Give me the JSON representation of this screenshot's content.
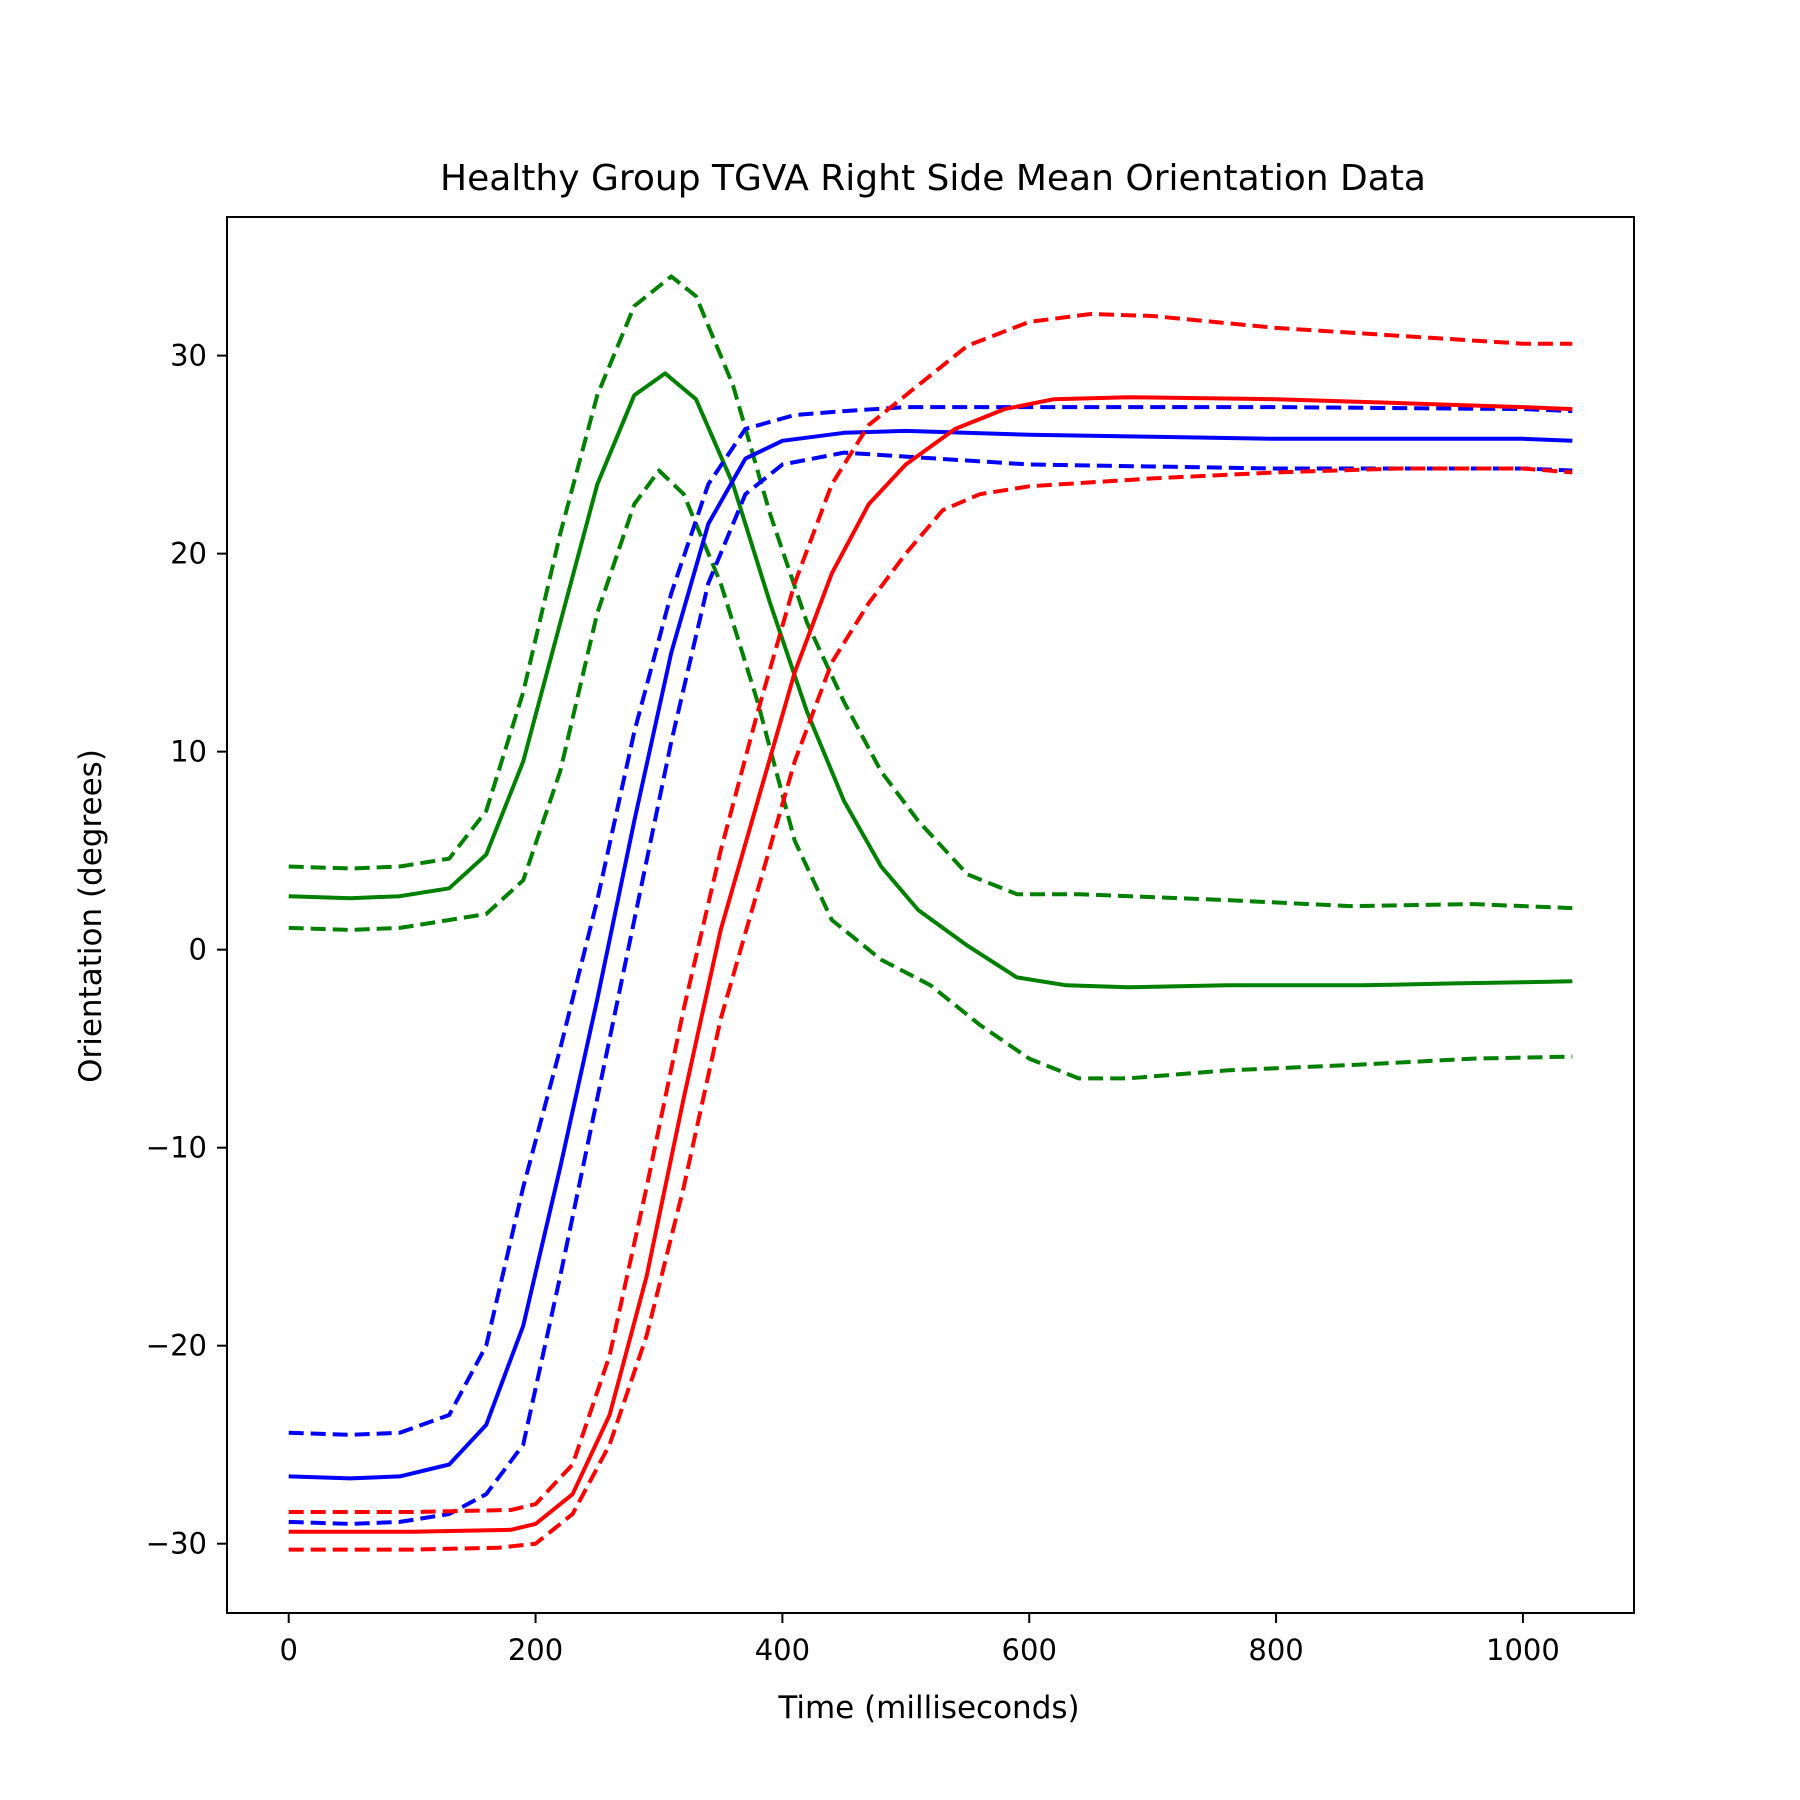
{
  "chart_data": {
    "type": "line",
    "title": "Healthy Group TGVA Right Side Mean Orientation Data",
    "xlabel": "Time (milliseconds)",
    "ylabel": "Orientation (degrees)",
    "xlim": [
      -50,
      1090
    ],
    "ylim": [
      -33.5,
      37
    ],
    "x_ticks": [
      0,
      200,
      400,
      600,
      800,
      1000
    ],
    "y_ticks": [
      -30,
      -20,
      -10,
      0,
      10,
      20,
      30
    ],
    "grid": false,
    "legend": "none",
    "series": [
      {
        "color": "#008000",
        "style": "solid",
        "points": [
          [
            0,
            2.7
          ],
          [
            50,
            2.6
          ],
          [
            90,
            2.7
          ],
          [
            130,
            3.1
          ],
          [
            160,
            4.8
          ],
          [
            190,
            9.5
          ],
          [
            220,
            16.5
          ],
          [
            250,
            23.5
          ],
          [
            280,
            28
          ],
          [
            305,
            29.1
          ],
          [
            330,
            27.8
          ],
          [
            360,
            23.5
          ],
          [
            390,
            17.5
          ],
          [
            420,
            12
          ],
          [
            450,
            7.5
          ],
          [
            480,
            4.2
          ],
          [
            510,
            2
          ],
          [
            550,
            0.2
          ],
          [
            590,
            -1.4
          ],
          [
            630,
            -1.8
          ],
          [
            680,
            -1.9
          ],
          [
            760,
            -1.8
          ],
          [
            870,
            -1.8
          ],
          [
            950,
            -1.7
          ],
          [
            1000,
            -1.65
          ],
          [
            1040,
            -1.6
          ]
        ]
      },
      {
        "color": "#008000",
        "style": "dashed",
        "points": [
          [
            0,
            4.2
          ],
          [
            50,
            4.1
          ],
          [
            90,
            4.2
          ],
          [
            130,
            4.6
          ],
          [
            160,
            7
          ],
          [
            190,
            13
          ],
          [
            220,
            21
          ],
          [
            250,
            28
          ],
          [
            280,
            32.5
          ],
          [
            310,
            34
          ],
          [
            330,
            33
          ],
          [
            360,
            28.5
          ],
          [
            390,
            22
          ],
          [
            420,
            16.5
          ],
          [
            450,
            12.5
          ],
          [
            480,
            9
          ],
          [
            510,
            6.5
          ],
          [
            550,
            3.8
          ],
          [
            590,
            2.8
          ],
          [
            640,
            2.8
          ],
          [
            760,
            2.5
          ],
          [
            860,
            2.2
          ],
          [
            960,
            2.3
          ],
          [
            1040,
            2.1
          ]
        ]
      },
      {
        "color": "#008000",
        "style": "dashed",
        "points": [
          [
            0,
            1.1
          ],
          [
            50,
            1
          ],
          [
            90,
            1.1
          ],
          [
            130,
            1.5
          ],
          [
            160,
            1.8
          ],
          [
            190,
            3.5
          ],
          [
            220,
            9
          ],
          [
            250,
            17
          ],
          [
            280,
            22.5
          ],
          [
            300,
            24.2
          ],
          [
            320,
            23
          ],
          [
            350,
            18.5
          ],
          [
            380,
            12.5
          ],
          [
            410,
            5.5
          ],
          [
            440,
            1.5
          ],
          [
            480,
            -0.5
          ],
          [
            520,
            -1.8
          ],
          [
            560,
            -3.8
          ],
          [
            600,
            -5.5
          ],
          [
            640,
            -6.5
          ],
          [
            680,
            -6.5
          ],
          [
            760,
            -6.1
          ],
          [
            870,
            -5.8
          ],
          [
            960,
            -5.5
          ],
          [
            1040,
            -5.4
          ]
        ]
      },
      {
        "color": "#0000ff",
        "style": "solid",
        "points": [
          [
            0,
            -26.6
          ],
          [
            50,
            -26.7
          ],
          [
            90,
            -26.6
          ],
          [
            130,
            -26
          ],
          [
            160,
            -24
          ],
          [
            190,
            -19
          ],
          [
            220,
            -11
          ],
          [
            250,
            -2.5
          ],
          [
            280,
            6.5
          ],
          [
            310,
            15
          ],
          [
            340,
            21.5
          ],
          [
            370,
            24.8
          ],
          [
            400,
            25.7
          ],
          [
            450,
            26.1
          ],
          [
            500,
            26.2
          ],
          [
            600,
            26
          ],
          [
            700,
            25.9
          ],
          [
            800,
            25.8
          ],
          [
            900,
            25.8
          ],
          [
            1000,
            25.8
          ],
          [
            1040,
            25.7
          ]
        ]
      },
      {
        "color": "#0000ff",
        "style": "dashed",
        "points": [
          [
            0,
            -24.4
          ],
          [
            50,
            -24.5
          ],
          [
            90,
            -24.4
          ],
          [
            130,
            -23.5
          ],
          [
            160,
            -20
          ],
          [
            190,
            -12
          ],
          [
            220,
            -5
          ],
          [
            250,
            2.5
          ],
          [
            280,
            11
          ],
          [
            310,
            18
          ],
          [
            340,
            23.5
          ],
          [
            370,
            26.3
          ],
          [
            410,
            27
          ],
          [
            450,
            27.2
          ],
          [
            500,
            27.4
          ],
          [
            600,
            27.4
          ],
          [
            800,
            27.4
          ],
          [
            1000,
            27.3
          ],
          [
            1040,
            27.2
          ]
        ]
      },
      {
        "color": "#0000ff",
        "style": "dashed",
        "points": [
          [
            0,
            -28.9
          ],
          [
            50,
            -29
          ],
          [
            90,
            -28.9
          ],
          [
            130,
            -28.5
          ],
          [
            160,
            -27.5
          ],
          [
            190,
            -25
          ],
          [
            220,
            -16.5
          ],
          [
            250,
            -7.5
          ],
          [
            280,
            1.5
          ],
          [
            310,
            10.5
          ],
          [
            340,
            18.5
          ],
          [
            370,
            23
          ],
          [
            400,
            24.5
          ],
          [
            450,
            25.1
          ],
          [
            500,
            24.9
          ],
          [
            600,
            24.5
          ],
          [
            700,
            24.4
          ],
          [
            800,
            24.3
          ],
          [
            900,
            24.3
          ],
          [
            1000,
            24.3
          ],
          [
            1040,
            24.2
          ]
        ]
      },
      {
        "color": "#ff0000",
        "style": "solid",
        "points": [
          [
            0,
            -29.4
          ],
          [
            100,
            -29.4
          ],
          [
            180,
            -29.3
          ],
          [
            200,
            -29
          ],
          [
            230,
            -27.5
          ],
          [
            260,
            -23.5
          ],
          [
            290,
            -16.5
          ],
          [
            320,
            -7.5
          ],
          [
            350,
            1
          ],
          [
            380,
            7.5
          ],
          [
            410,
            14
          ],
          [
            440,
            19
          ],
          [
            470,
            22.5
          ],
          [
            500,
            24.5
          ],
          [
            540,
            26.3
          ],
          [
            580,
            27.3
          ],
          [
            620,
            27.8
          ],
          [
            680,
            27.9
          ],
          [
            800,
            27.8
          ],
          [
            900,
            27.6
          ],
          [
            1000,
            27.4
          ],
          [
            1040,
            27.3
          ]
        ]
      },
      {
        "color": "#ff0000",
        "style": "dashed",
        "points": [
          [
            0,
            -28.4
          ],
          [
            100,
            -28.4
          ],
          [
            180,
            -28.3
          ],
          [
            200,
            -28
          ],
          [
            230,
            -26
          ],
          [
            260,
            -20.5
          ],
          [
            290,
            -12
          ],
          [
            320,
            -3
          ],
          [
            350,
            5
          ],
          [
            380,
            12
          ],
          [
            410,
            18.5
          ],
          [
            440,
            23.5
          ],
          [
            470,
            26.5
          ],
          [
            510,
            28.5
          ],
          [
            550,
            30.5
          ],
          [
            600,
            31.7
          ],
          [
            650,
            32.1
          ],
          [
            700,
            32
          ],
          [
            800,
            31.4
          ],
          [
            900,
            31
          ],
          [
            1000,
            30.6
          ],
          [
            1040,
            30.6
          ]
        ]
      },
      {
        "color": "#ff0000",
        "style": "dashed",
        "points": [
          [
            0,
            -30.3
          ],
          [
            100,
            -30.3
          ],
          [
            170,
            -30.2
          ],
          [
            200,
            -30
          ],
          [
            230,
            -28.5
          ],
          [
            260,
            -25
          ],
          [
            290,
            -19.5
          ],
          [
            320,
            -12
          ],
          [
            350,
            -3.5
          ],
          [
            380,
            3
          ],
          [
            410,
            9.5
          ],
          [
            440,
            14.5
          ],
          [
            470,
            17.5
          ],
          [
            500,
            20
          ],
          [
            530,
            22.2
          ],
          [
            560,
            23
          ],
          [
            600,
            23.4
          ],
          [
            700,
            23.8
          ],
          [
            800,
            24.1
          ],
          [
            900,
            24.3
          ],
          [
            1000,
            24.3
          ],
          [
            1040,
            24.1
          ]
        ]
      }
    ]
  }
}
